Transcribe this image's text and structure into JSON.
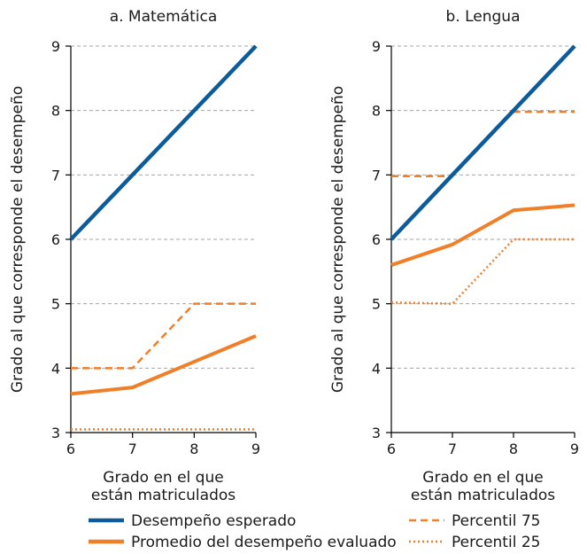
{
  "chart_data": [
    {
      "type": "line",
      "title": "a. Matemática",
      "xlabel": "Grado en el que\nestán matriculados",
      "ylabel": "Grado al que corresponde el desempeño",
      "x": [
        6,
        7,
        8,
        9
      ],
      "xlim": [
        6,
        9
      ],
      "ylim": [
        3,
        9
      ],
      "yticks": [
        3,
        4,
        5,
        6,
        7,
        8,
        9
      ],
      "grid": "horizontal dashed",
      "series": [
        {
          "name": "Desempeño esperado",
          "key": "expected",
          "values": [
            6,
            7,
            8,
            9
          ]
        },
        {
          "name": "Promedio del desempeño evaluado",
          "key": "average",
          "values": [
            3.6,
            3.7,
            4.1,
            4.5
          ]
        },
        {
          "name": "Percentil 75",
          "key": "p75",
          "values": [
            4,
            4,
            5,
            5
          ]
        },
        {
          "name": "Percentil 25",
          "key": "p25",
          "values": [
            3.05,
            3.05,
            3.05,
            3.05
          ]
        }
      ]
    },
    {
      "type": "line",
      "title": "b. Lengua",
      "xlabel": "Grado en el que\nestán matriculados",
      "ylabel": "Grado al que corresponde el desempeño",
      "x": [
        6,
        7,
        8,
        9
      ],
      "xlim": [
        6,
        9
      ],
      "ylim": [
        3,
        9
      ],
      "yticks": [
        3,
        4,
        5,
        6,
        7,
        8,
        9
      ],
      "grid": "horizontal dashed",
      "series": [
        {
          "name": "Desempeño esperado",
          "key": "expected",
          "values": [
            6,
            7,
            8,
            9
          ]
        },
        {
          "name": "Promedio del desempeño evaluado",
          "key": "average",
          "values": [
            5.6,
            5.92,
            6.45,
            6.53
          ]
        },
        {
          "name": "Percentil 75",
          "key": "p75",
          "values": [
            6.98,
            6.98,
            7.98,
            7.98
          ]
        },
        {
          "name": "Percentil 25",
          "key": "p25",
          "values": [
            5.02,
            5.0,
            6.0,
            6.0
          ]
        }
      ]
    }
  ],
  "legend": {
    "placement": "bottom",
    "items": [
      {
        "key": "expected",
        "label": "Desempeño esperado"
      },
      {
        "key": "average",
        "label": "Promedio del desempeño evaluado"
      },
      {
        "key": "p75",
        "label": "Percentil 75"
      },
      {
        "key": "p25",
        "label": "Percentil 25"
      }
    ]
  },
  "styles": {
    "expected": {
      "color": "#0c5c9c",
      "dash": "none"
    },
    "average": {
      "color": "#f07f2a",
      "dash": "none"
    },
    "p75": {
      "color": "#f07f2a",
      "dash": "8,5"
    },
    "p25": {
      "color": "#f07f2a",
      "dash": "2,3"
    },
    "grid": {
      "color": "#a6a6a6"
    }
  }
}
